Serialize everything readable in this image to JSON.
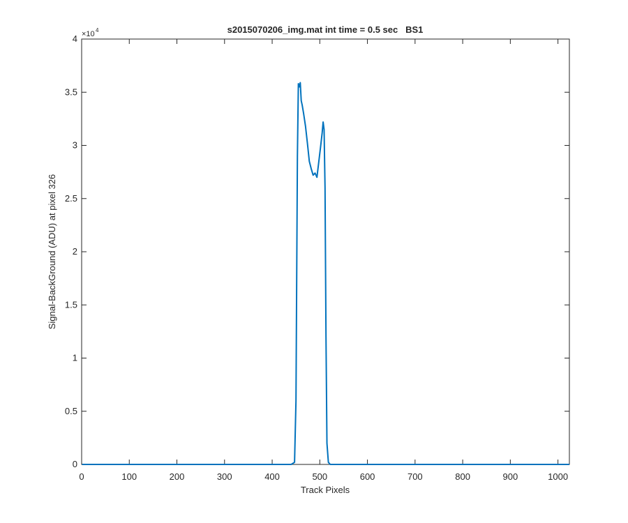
{
  "chart_data": {
    "type": "line",
    "title": "s2015070206_img.mat int time = 0.5 sec   BS1",
    "xlabel": "Track Pixels",
    "ylabel": "Signal-BackGround (ADU) at pixel 326",
    "y_multiplier": {
      "base": "×10",
      "exponent": "4"
    },
    "x": [
      1,
      440,
      447,
      450,
      453,
      455,
      457,
      459,
      461,
      463,
      466,
      470,
      474,
      478,
      482,
      486,
      490,
      494,
      498,
      502,
      505,
      507,
      509,
      511,
      513,
      515,
      518,
      522,
      1024
    ],
    "series": [
      {
        "name": "BS1",
        "color": "#0072BD",
        "values": [
          0,
          0,
          0.02,
          0.6,
          2.9,
          3.58,
          3.55,
          3.59,
          3.42,
          3.38,
          3.3,
          3.18,
          3.02,
          2.85,
          2.78,
          2.72,
          2.74,
          2.7,
          2.85,
          3.0,
          3.12,
          3.22,
          3.15,
          2.6,
          1.2,
          0.2,
          0.02,
          0,
          0
        ]
      }
    ],
    "xlim": [
      0,
      1024
    ],
    "xticks": [
      0,
      100,
      200,
      300,
      400,
      500,
      600,
      700,
      800,
      900,
      1000
    ],
    "ylim": [
      0,
      4
    ],
    "yticks": [
      0,
      0.5,
      1,
      1.5,
      2,
      2.5,
      3,
      3.5,
      4
    ],
    "grid": false
  }
}
